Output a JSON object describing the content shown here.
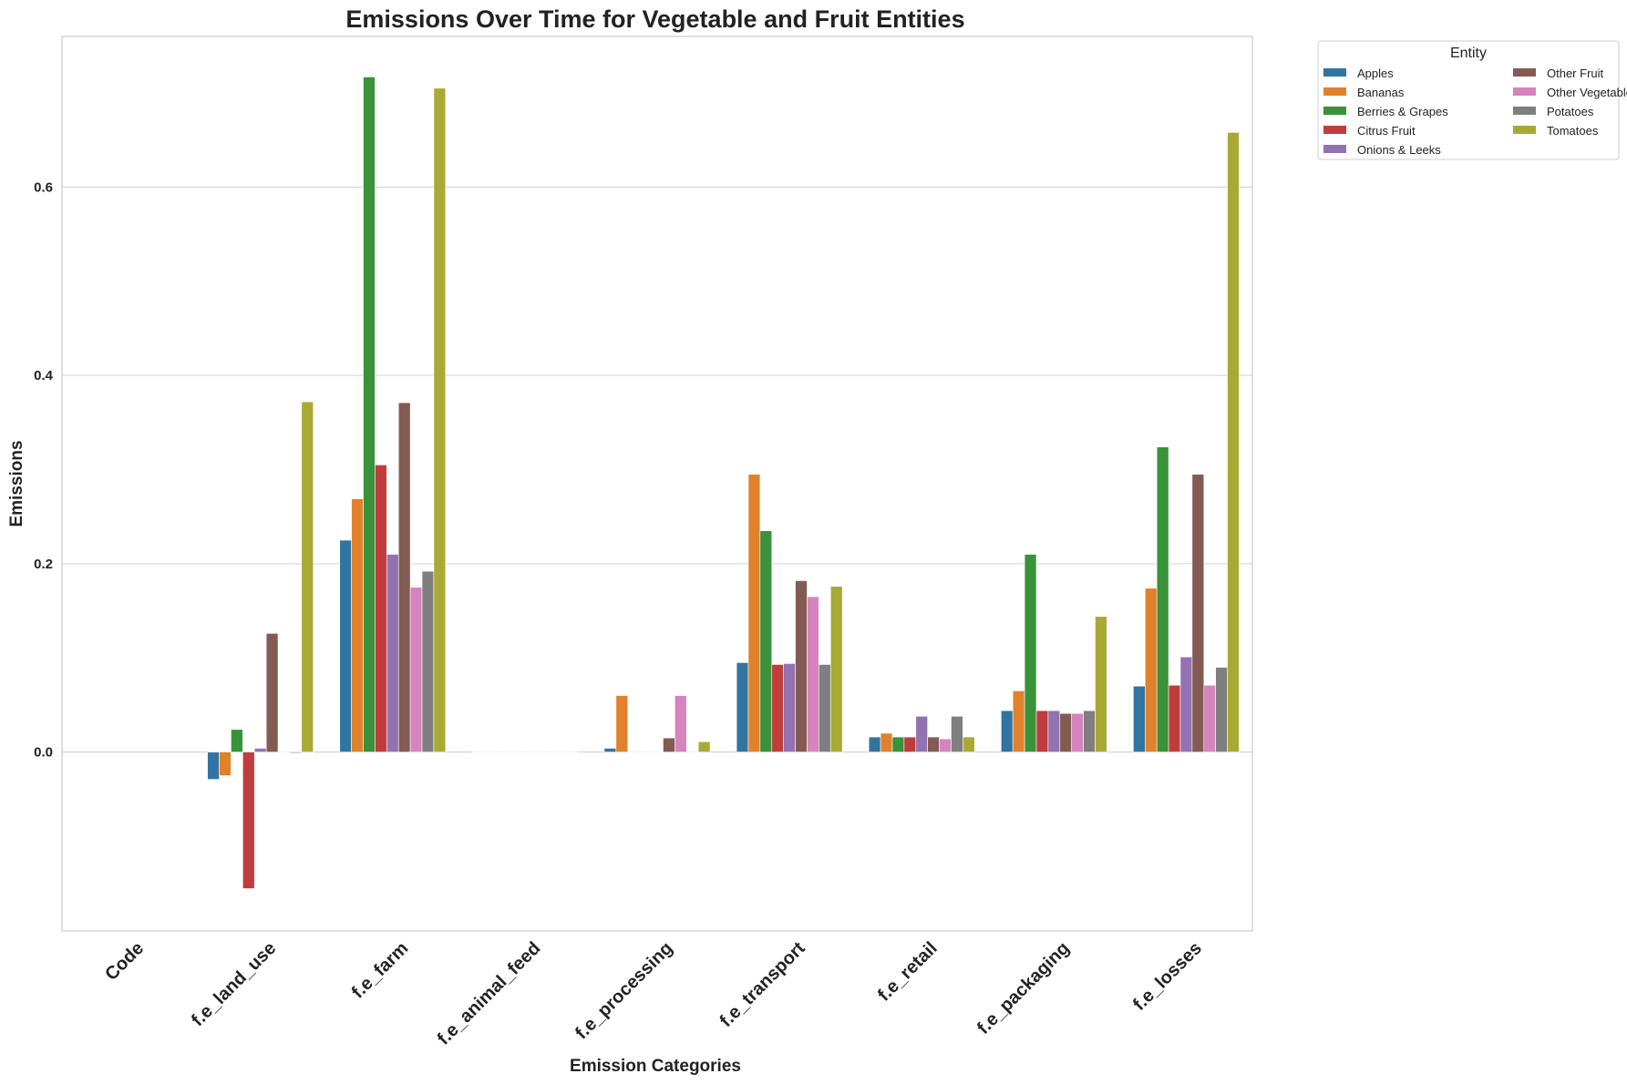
{
  "chart_data": {
    "type": "bar",
    "title": "Emissions Over Time for Vegetable and Fruit Entities",
    "xlabel": "Emission Categories",
    "ylabel": "Emissions",
    "categories": [
      "Code",
      "f.e_land_use",
      "f.e_farm",
      "f.e_animal_feed",
      "f.e_processing",
      "f.e_transport",
      "f.e_retail",
      "f.e_packaging",
      "f.e_losses"
    ],
    "ylim": [
      -0.19,
      0.76
    ],
    "yticks": [
      0.0,
      0.2,
      0.4,
      0.6
    ],
    "ytick_labels": [
      "0.0",
      "0.2",
      "0.4",
      "0.6"
    ],
    "grid": "horizontal",
    "legend": {
      "title": "Entity",
      "placement": "outside top-right",
      "columns": 2
    },
    "series": [
      {
        "name": "Apples",
        "color": "#3274a1",
        "values": [
          null,
          -0.029,
          0.225,
          0.0,
          0.004,
          0.095,
          0.016,
          0.044,
          0.07
        ]
      },
      {
        "name": "Bananas",
        "color": "#e1812c",
        "values": [
          null,
          -0.025,
          0.269,
          0.0,
          0.06,
          0.295,
          0.02,
          0.065,
          0.174
        ]
      },
      {
        "name": "Berries & Grapes",
        "color": "#3a923a",
        "values": [
          null,
          0.024,
          0.717,
          0.0,
          0.0,
          0.235,
          0.016,
          0.21,
          0.324
        ]
      },
      {
        "name": "Citrus Fruit",
        "color": "#c03d3e",
        "values": [
          null,
          -0.145,
          0.305,
          0.0,
          0.0,
          0.093,
          0.016,
          0.044,
          0.071
        ]
      },
      {
        "name": "Onions & Leeks",
        "color": "#9372b2",
        "values": [
          null,
          0.004,
          0.21,
          0.0,
          0.0,
          0.094,
          0.038,
          0.044,
          0.101
        ]
      },
      {
        "name": "Other Fruit",
        "color": "#845b53",
        "values": [
          null,
          0.126,
          0.371,
          0.0,
          0.015,
          0.182,
          0.016,
          0.041,
          0.295
        ]
      },
      {
        "name": "Other Vegetables",
        "color": "#d684bd",
        "values": [
          null,
          0.0,
          0.175,
          0.0,
          0.06,
          0.165,
          0.014,
          0.041,
          0.071
        ]
      },
      {
        "name": "Potatoes",
        "color": "#7f7f7f",
        "values": [
          null,
          -0.001,
          0.192,
          0.0,
          0.0,
          0.093,
          0.038,
          0.044,
          0.09
        ]
      },
      {
        "name": "Tomatoes",
        "color": "#a9aa35",
        "values": [
          null,
          0.372,
          0.705,
          0.0,
          0.011,
          0.176,
          0.016,
          0.144,
          0.658
        ]
      }
    ]
  }
}
